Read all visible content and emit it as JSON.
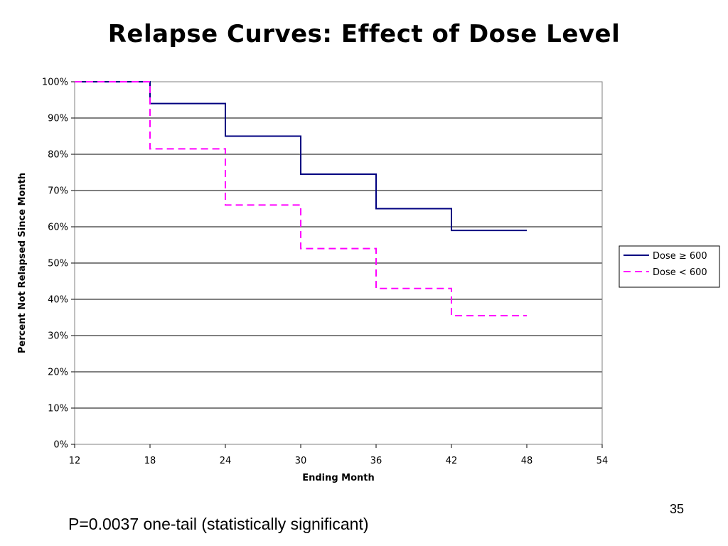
{
  "slide": {
    "title": "Relapse Curves: Effect of Dose Level",
    "footnote": "P=0.0037 one-tail (statistically significant)",
    "slide_number": "35"
  },
  "chart_data": {
    "type": "line",
    "step": true,
    "xlabel": "Ending Month",
    "ylabel": "Percent Not Relapsed Since Month",
    "xlim": [
      12,
      54
    ],
    "ylim": [
      0,
      100
    ],
    "xticks": [
      "12",
      "18",
      "24",
      "30",
      "36",
      "42",
      "48",
      "54"
    ],
    "yticks": [
      "0%",
      "10%",
      "20%",
      "30%",
      "40%",
      "50%",
      "60%",
      "70%",
      "80%",
      "90%",
      "100%"
    ],
    "grid": "horizontal",
    "legend_position": "right",
    "series": [
      {
        "name": "Dose ≥ 600",
        "color": "#000080",
        "dash": "solid",
        "x": [
          12,
          18,
          24,
          30,
          36,
          42,
          48
        ],
        "y": [
          100,
          94,
          85,
          74.5,
          65,
          59,
          59
        ]
      },
      {
        "name": "Dose < 600",
        "color": "#ff00ff",
        "dash": "dashed",
        "x": [
          12,
          18,
          24,
          30,
          36,
          42,
          48
        ],
        "y": [
          100,
          81.5,
          66,
          54,
          43,
          35.5,
          35.5
        ]
      }
    ]
  }
}
